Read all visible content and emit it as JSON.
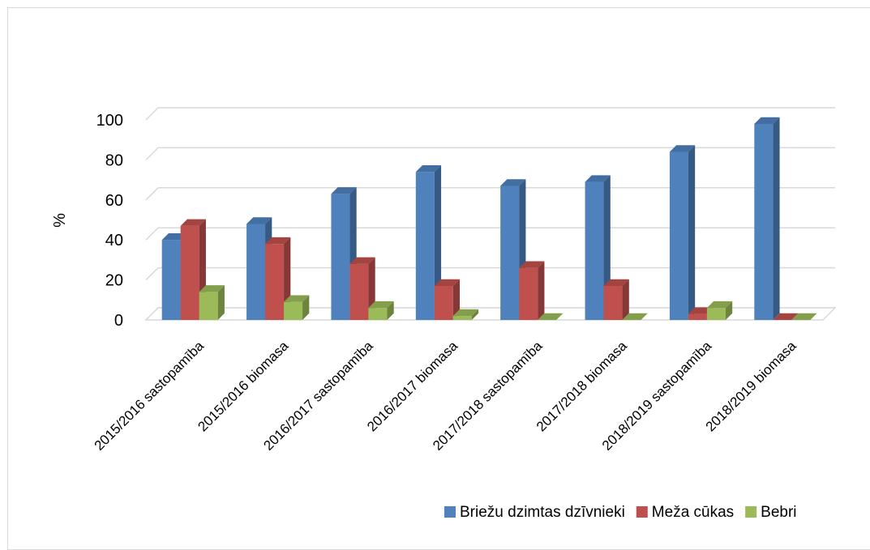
{
  "chart_data": {
    "type": "bar",
    "title": "",
    "xlabel": "",
    "ylabel": "%",
    "ylim": [
      0,
      100
    ],
    "yticks": [
      0,
      20,
      40,
      60,
      80,
      100
    ],
    "grid": true,
    "legend_position": "bottom-right",
    "categories": [
      "2015/2016 sastopamība",
      "2015/2016 biomasa",
      "2016/2017 sastopamība",
      "2016/2017 biomasa",
      "2017/2018 sastopamība",
      "2017/2018 biomasa",
      "2018/2019 sastopamība",
      "2018/2019 biomasa"
    ],
    "series": [
      {
        "name": "Briežu dzimtas dzīvnieki",
        "color": "#4F81BD",
        "values": [
          40,
          48,
          63,
          74,
          67,
          69,
          84,
          98
        ]
      },
      {
        "name": "Meža cūkas",
        "color": "#C0504D",
        "values": [
          47,
          38,
          28,
          17,
          26,
          17,
          3,
          0
        ]
      },
      {
        "name": "Bebri",
        "color": "#9BBB59",
        "values": [
          14,
          9,
          6,
          2,
          0,
          0,
          6,
          0
        ]
      }
    ]
  }
}
